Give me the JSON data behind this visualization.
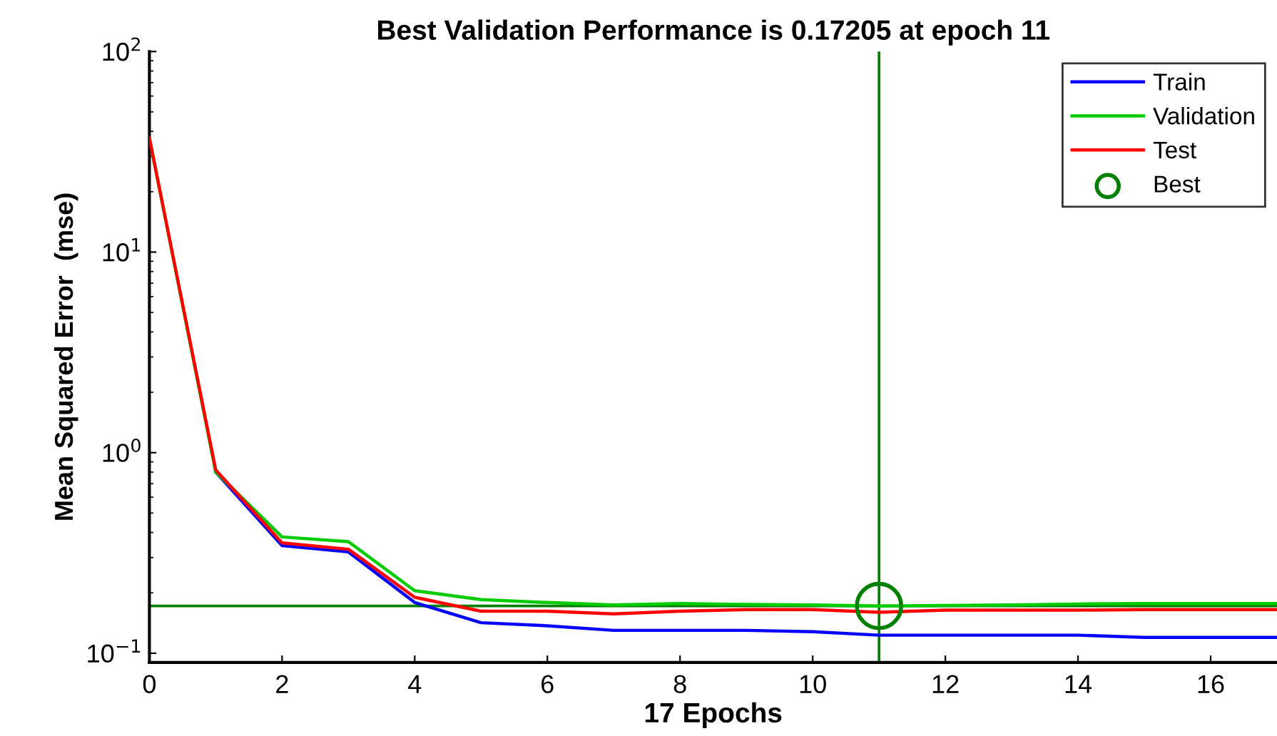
{
  "chart_data": {
    "type": "line",
    "title": "Best Validation Performance is 0.17205 at epoch 11",
    "xlabel": "17 Epochs",
    "ylabel": "Mean Squared Error  (mse)",
    "x": [
      0,
      1,
      2,
      3,
      4,
      5,
      6,
      7,
      8,
      9,
      10,
      11,
      12,
      13,
      14,
      15,
      16,
      17
    ],
    "series": [
      {
        "name": "Train",
        "color": "#0000ff",
        "values": [
          null,
          0.8,
          0.344,
          0.32,
          0.179,
          0.142,
          0.137,
          0.13,
          0.13,
          0.13,
          0.128,
          0.123,
          0.123,
          0.123,
          0.123,
          0.12,
          0.12,
          0.12
        ]
      },
      {
        "name": "Validation",
        "color": "#00cc00",
        "values": [
          37,
          0.8,
          0.38,
          0.36,
          0.205,
          0.185,
          0.179,
          0.174,
          0.177,
          0.175,
          0.174,
          0.17205,
          0.173,
          0.174,
          0.176,
          0.177,
          0.177,
          0.177
        ]
      },
      {
        "name": "Test",
        "color": "#ff0000",
        "values": [
          37,
          0.82,
          0.355,
          0.33,
          0.19,
          0.162,
          0.162,
          0.157,
          0.162,
          0.165,
          0.165,
          0.16,
          0.164,
          0.164,
          0.164,
          0.165,
          0.165,
          0.165
        ]
      },
      {
        "name": "Best",
        "type": "scatter",
        "marker": "circle",
        "color": "#008000",
        "x": [
          11
        ],
        "values": [
          0.17205
        ]
      }
    ],
    "ref_lines": [
      {
        "axis": "x",
        "value": 11,
        "color": "#008000"
      },
      {
        "axis": "y",
        "value": 0.17205,
        "color": "#008000"
      }
    ],
    "log": "y",
    "xlim": [
      0,
      17
    ],
    "ylim": [
      0.09,
      100
    ],
    "xticks": [
      0,
      2,
      4,
      6,
      8,
      10,
      12,
      14,
      16
    ],
    "yticks": [
      {
        "value": 0.1,
        "label": "10$^{−1}$"
      },
      {
        "value": 1,
        "label": "10$^{0}$"
      },
      {
        "value": 10,
        "label": "10$^{1}$"
      },
      {
        "value": 100,
        "label": "10$^{2}$"
      }
    ],
    "legend": "top right",
    "grid": false,
    "line_style": "solid"
  }
}
